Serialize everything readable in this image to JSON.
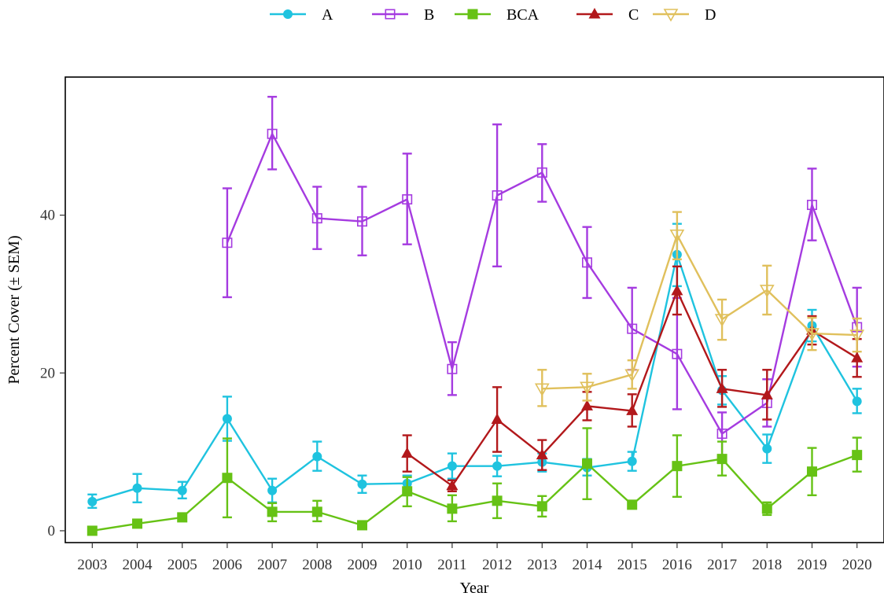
{
  "chart_data": {
    "type": "line",
    "title": "",
    "xlabel": "Year",
    "ylabel": "Percent Cover (± SEM)",
    "x": [
      2003,
      2004,
      2005,
      2006,
      2007,
      2008,
      2009,
      2010,
      2011,
      2012,
      2013,
      2014,
      2015,
      2016,
      2017,
      2018,
      2019,
      2020
    ],
    "xlim": [
      2002.4,
      2020.6
    ],
    "ylim": [
      -1.5,
      57.5
    ],
    "yticks": [
      0,
      20,
      40
    ],
    "grid": false,
    "legend": "top",
    "error_bars": "SEM",
    "series": [
      {
        "name": "A",
        "color": "#1FC3DF",
        "marker": "circle",
        "points": [
          {
            "x": 2003,
            "y": 3.7,
            "lo": 2.9,
            "hi": 4.6
          },
          {
            "x": 2004,
            "y": 5.4,
            "lo": 3.6,
            "hi": 7.2
          },
          {
            "x": 2005,
            "y": 5.1,
            "lo": 4.1,
            "hi": 6.2
          },
          {
            "x": 2006,
            "y": 14.2,
            "lo": 11.4,
            "hi": 17.0
          },
          {
            "x": 2007,
            "y": 5.1,
            "lo": 3.6,
            "hi": 6.6
          },
          {
            "x": 2008,
            "y": 9.4,
            "lo": 7.6,
            "hi": 11.3
          },
          {
            "x": 2009,
            "y": 5.9,
            "lo": 4.8,
            "hi": 7.0
          },
          {
            "x": 2010,
            "y": 6.0,
            "lo": 5.0,
            "hi": 7.0
          },
          {
            "x": 2011,
            "y": 8.2,
            "lo": 6.6,
            "hi": 9.8
          },
          {
            "x": 2012,
            "y": 8.2,
            "lo": 6.9,
            "hi": 9.5
          },
          {
            "x": 2013,
            "y": 8.7,
            "lo": 7.5,
            "hi": 9.8
          },
          {
            "x": 2014,
            "y": 8.0,
            "lo": 7.0,
            "hi": 9.1
          },
          {
            "x": 2015,
            "y": 8.8,
            "lo": 7.6,
            "hi": 10.0
          },
          {
            "x": 2016,
            "y": 35.0,
            "lo": 31.0,
            "hi": 38.9
          },
          {
            "x": 2017,
            "y": 17.8,
            "lo": 16.0,
            "hi": 19.6
          },
          {
            "x": 2018,
            "y": 10.4,
            "lo": 8.6,
            "hi": 12.2
          },
          {
            "x": 2019,
            "y": 26.0,
            "lo": 24.0,
            "hi": 28.0
          },
          {
            "x": 2020,
            "y": 16.4,
            "lo": 14.9,
            "hi": 18.0
          }
        ]
      },
      {
        "name": "B",
        "color": "#A53BE0",
        "marker": "square-open",
        "points": [
          {
            "x": 2006,
            "y": 36.5,
            "lo": 29.6,
            "hi": 43.4
          },
          {
            "x": 2007,
            "y": 50.3,
            "lo": 45.8,
            "hi": 55.0
          },
          {
            "x": 2008,
            "y": 39.6,
            "lo": 35.7,
            "hi": 43.6
          },
          {
            "x": 2009,
            "y": 39.2,
            "lo": 34.9,
            "hi": 43.6
          },
          {
            "x": 2010,
            "y": 42.0,
            "lo": 36.3,
            "hi": 47.8
          },
          {
            "x": 2011,
            "y": 20.5,
            "lo": 17.2,
            "hi": 23.9
          },
          {
            "x": 2012,
            "y": 42.5,
            "lo": 33.5,
            "hi": 51.5
          },
          {
            "x": 2013,
            "y": 45.4,
            "lo": 41.7,
            "hi": 49.0
          },
          {
            "x": 2014,
            "y": 34.0,
            "lo": 29.5,
            "hi": 38.5
          },
          {
            "x": 2015,
            "y": 25.6,
            "lo": 20.4,
            "hi": 30.8
          },
          {
            "x": 2016,
            "y": 22.4,
            "lo": 15.4,
            "hi": 29.5
          },
          {
            "x": 2017,
            "y": 12.3,
            "lo": 9.6,
            "hi": 15.0
          },
          {
            "x": 2018,
            "y": 16.2,
            "lo": 13.2,
            "hi": 19.2
          },
          {
            "x": 2019,
            "y": 41.3,
            "lo": 36.8,
            "hi": 45.9
          },
          {
            "x": 2020,
            "y": 25.8,
            "lo": 20.8,
            "hi": 30.8
          }
        ]
      },
      {
        "name": "BCA",
        "color": "#66C215",
        "marker": "square",
        "points": [
          {
            "x": 2003,
            "y": 0.0,
            "lo": 0.0,
            "hi": 0.0
          },
          {
            "x": 2004,
            "y": 0.9,
            "lo": 0.9,
            "hi": 0.9
          },
          {
            "x": 2005,
            "y": 1.7,
            "lo": 1.7,
            "hi": 1.7
          },
          {
            "x": 2006,
            "y": 6.7,
            "lo": 1.7,
            "hi": 11.7
          },
          {
            "x": 2007,
            "y": 2.4,
            "lo": 1.2,
            "hi": 3.5
          },
          {
            "x": 2008,
            "y": 2.4,
            "lo": 1.2,
            "hi": 3.8
          },
          {
            "x": 2009,
            "y": 0.7,
            "lo": 0.7,
            "hi": 0.7
          },
          {
            "x": 2010,
            "y": 5.0,
            "lo": 3.1,
            "hi": 6.8
          },
          {
            "x": 2011,
            "y": 2.8,
            "lo": 1.2,
            "hi": 4.5
          },
          {
            "x": 2012,
            "y": 3.8,
            "lo": 1.6,
            "hi": 6.0
          },
          {
            "x": 2013,
            "y": 3.1,
            "lo": 1.8,
            "hi": 4.4
          },
          {
            "x": 2014,
            "y": 8.5,
            "lo": 4.0,
            "hi": 13.0
          },
          {
            "x": 2015,
            "y": 3.3,
            "lo": 3.3,
            "hi": 3.3
          },
          {
            "x": 2016,
            "y": 8.2,
            "lo": 4.3,
            "hi": 12.1
          },
          {
            "x": 2017,
            "y": 9.1,
            "lo": 7.0,
            "hi": 11.3
          },
          {
            "x": 2018,
            "y": 2.8,
            "lo": 2.0,
            "hi": 3.6
          },
          {
            "x": 2019,
            "y": 7.5,
            "lo": 4.5,
            "hi": 10.5
          },
          {
            "x": 2020,
            "y": 9.6,
            "lo": 7.5,
            "hi": 11.8
          }
        ]
      },
      {
        "name": "C",
        "color": "#B2181B",
        "marker": "triangle",
        "points": [
          {
            "x": 2010,
            "y": 9.8,
            "lo": 7.5,
            "hi": 12.1
          },
          {
            "x": 2011,
            "y": 5.7,
            "lo": 5.0,
            "hi": 6.4
          },
          {
            "x": 2012,
            "y": 14.1,
            "lo": 10.0,
            "hi": 18.2
          },
          {
            "x": 2013,
            "y": 9.6,
            "lo": 7.7,
            "hi": 11.5
          },
          {
            "x": 2014,
            "y": 15.8,
            "lo": 14.0,
            "hi": 17.6
          },
          {
            "x": 2015,
            "y": 15.2,
            "lo": 13.2,
            "hi": 17.3
          },
          {
            "x": 2016,
            "y": 30.4,
            "lo": 27.4,
            "hi": 33.5
          },
          {
            "x": 2017,
            "y": 18.0,
            "lo": 15.7,
            "hi": 20.4
          },
          {
            "x": 2018,
            "y": 17.2,
            "lo": 14.1,
            "hi": 20.4
          },
          {
            "x": 2019,
            "y": 25.4,
            "lo": 23.6,
            "hi": 27.2
          },
          {
            "x": 2020,
            "y": 21.9,
            "lo": 19.5,
            "hi": 24.3
          }
        ]
      },
      {
        "name": "D",
        "color": "#E0C05C",
        "marker": "triangle-down-open",
        "points": [
          {
            "x": 2013,
            "y": 18.0,
            "lo": 15.8,
            "hi": 20.4
          },
          {
            "x": 2014,
            "y": 18.2,
            "lo": 16.5,
            "hi": 19.9
          },
          {
            "x": 2015,
            "y": 19.8,
            "lo": 18.0,
            "hi": 21.6
          },
          {
            "x": 2016,
            "y": 37.5,
            "lo": 34.4,
            "hi": 40.4
          },
          {
            "x": 2017,
            "y": 26.8,
            "lo": 24.2,
            "hi": 29.3
          },
          {
            "x": 2018,
            "y": 30.5,
            "lo": 27.4,
            "hi": 33.6
          },
          {
            "x": 2019,
            "y": 25.0,
            "lo": 22.9,
            "hi": 27.0
          },
          {
            "x": 2020,
            "y": 24.8,
            "lo": 22.7,
            "hi": 26.9
          }
        ]
      }
    ]
  }
}
